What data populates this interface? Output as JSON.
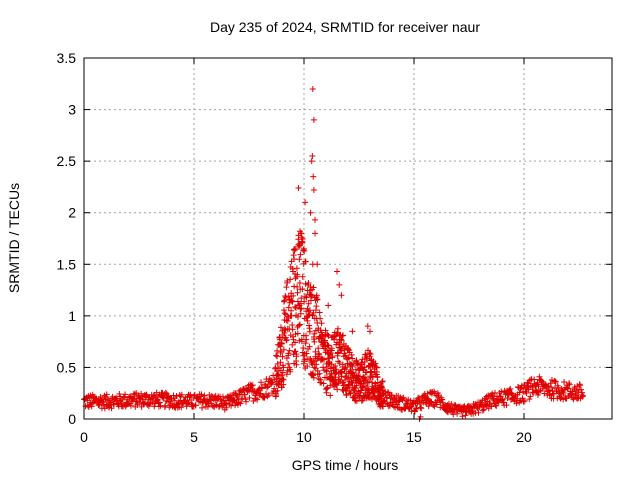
{
  "chart_data": {
    "type": "scatter",
    "title": "Day 235 of 2024, SRMTID for receiver naur",
    "xlabel": "GPS time / hours",
    "ylabel": "SRMTID / TECUs",
    "xlim": [
      0,
      24
    ],
    "ylim": [
      0,
      3.5
    ],
    "xticks": [
      0,
      5,
      10,
      15,
      20
    ],
    "xtick_labels": [
      "0",
      "5",
      "10",
      "15",
      "20"
    ],
    "yticks": [
      0,
      0.5,
      1,
      1.5,
      2,
      2.5,
      3,
      3.5
    ],
    "ytick_labels": [
      "0",
      "0.5",
      "1",
      "1.5",
      "2",
      "2.5",
      "3",
      "3.5"
    ],
    "grid": true,
    "marker": "plus",
    "series": [
      {
        "name": "naur",
        "color": "#e00000",
        "x_range": [
          0,
          22.7
        ],
        "profile": [
          [
            0.0,
            0.17
          ],
          [
            1.0,
            0.17
          ],
          [
            2.0,
            0.18
          ],
          [
            3.0,
            0.19
          ],
          [
            4.0,
            0.18
          ],
          [
            5.0,
            0.17
          ],
          [
            5.5,
            0.18
          ],
          [
            6.0,
            0.17
          ],
          [
            6.5,
            0.15
          ],
          [
            7.0,
            0.2
          ],
          [
            7.5,
            0.25
          ],
          [
            8.0,
            0.28
          ],
          [
            8.5,
            0.33
          ],
          [
            8.8,
            0.45
          ],
          [
            9.0,
            0.65
          ],
          [
            9.3,
            0.95
          ],
          [
            9.6,
            1.15
          ],
          [
            9.9,
            1.2
          ],
          [
            10.2,
            0.9
          ],
          [
            10.5,
            0.85
          ],
          [
            10.8,
            0.6
          ],
          [
            11.2,
            0.5
          ],
          [
            11.6,
            0.6
          ],
          [
            12.0,
            0.45
          ],
          [
            12.5,
            0.35
          ],
          [
            13.0,
            0.45
          ],
          [
            13.5,
            0.25
          ],
          [
            14.0,
            0.18
          ],
          [
            14.5,
            0.15
          ],
          [
            15.0,
            0.12
          ],
          [
            15.5,
            0.18
          ],
          [
            16.0,
            0.2
          ],
          [
            16.5,
            0.12
          ],
          [
            17.0,
            0.07
          ],
          [
            17.5,
            0.08
          ],
          [
            18.0,
            0.12
          ],
          [
            18.5,
            0.18
          ],
          [
            19.0,
            0.2
          ],
          [
            19.5,
            0.22
          ],
          [
            20.0,
            0.25
          ],
          [
            20.5,
            0.32
          ],
          [
            21.0,
            0.3
          ],
          [
            21.5,
            0.28
          ],
          [
            22.0,
            0.27
          ],
          [
            22.7,
            0.25
          ]
        ],
        "peaks": [
          [
            10.4,
            3.2
          ],
          [
            10.45,
            2.9
          ],
          [
            10.38,
            2.55
          ],
          [
            10.35,
            2.5
          ],
          [
            10.42,
            2.35
          ],
          [
            10.45,
            2.22
          ],
          [
            9.75,
            2.24
          ],
          [
            9.82,
            1.82
          ],
          [
            10.05,
            2.1
          ],
          [
            10.3,
            2.0
          ],
          [
            10.5,
            1.93
          ],
          [
            10.5,
            1.8
          ],
          [
            9.8,
            1.7
          ],
          [
            9.6,
            1.65
          ],
          [
            9.55,
            1.55
          ],
          [
            9.9,
            1.72
          ],
          [
            10.0,
            1.65
          ],
          [
            10.4,
            1.5
          ],
          [
            10.6,
            1.5
          ],
          [
            11.1,
            1.1
          ],
          [
            11.5,
            1.43
          ],
          [
            11.6,
            1.3
          ],
          [
            11.7,
            1.2
          ],
          [
            12.2,
            0.85
          ],
          [
            12.9,
            0.9
          ],
          [
            13.0,
            0.85
          ],
          [
            15.25,
            0.0
          ],
          [
            15.3,
            0.02
          ]
        ]
      }
    ]
  }
}
